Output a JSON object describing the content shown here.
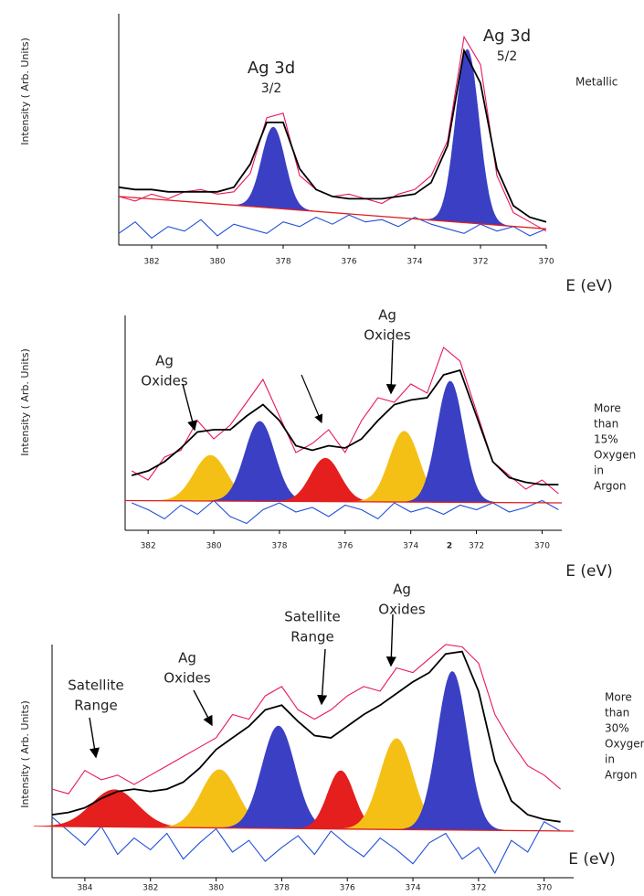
{
  "chart_data": [
    {
      "type": "line",
      "y_label": "Intensity ( Arb. Units)",
      "x_label": "E (eV)",
      "side_label": [
        "Metallic"
      ],
      "annotations": [
        {
          "lines": [
            "Ag 3d",
            "3/2"
          ]
        },
        {
          "lines": [
            "Ag 3d",
            "5/2"
          ]
        }
      ],
      "xlim": [
        383,
        370
      ],
      "xticks": [
        382,
        380,
        378,
        376,
        374,
        372,
        370
      ],
      "ylim": [
        0,
        100
      ],
      "x": [
        383,
        382.5,
        382,
        381.5,
        381,
        380.5,
        380,
        379.5,
        379,
        378.5,
        378,
        377.5,
        377,
        376.5,
        376,
        375.5,
        375,
        374.5,
        374,
        373.5,
        373,
        372.5,
        372,
        371.5,
        371,
        370.5,
        370
      ],
      "series": [
        {
          "color": "#1f4fd8",
          "values": [
            5,
            10,
            3,
            8,
            6,
            11,
            4,
            9,
            7,
            5,
            10,
            8,
            12,
            9,
            13,
            10,
            11,
            8,
            12,
            9,
            7,
            5,
            9,
            6,
            8,
            4,
            7
          ]
        },
        {
          "color": "#e8175d",
          "values": [
            21,
            19,
            22,
            20,
            23,
            24,
            22,
            23,
            31,
            55,
            57,
            30,
            24,
            21,
            22,
            20,
            18,
            22,
            24,
            30,
            45,
            90,
            78,
            30,
            14,
            10,
            6
          ]
        },
        {
          "color": "#000000",
          "values": [
            25,
            24,
            24,
            23,
            23,
            23,
            23,
            25,
            35,
            53,
            53,
            33,
            24,
            21,
            20,
            20,
            20,
            21,
            22,
            27,
            43,
            84,
            70,
            33,
            17,
            12,
            10
          ]
        }
      ],
      "background": {
        "color": "#e02020",
        "x": [
          383,
          370
        ],
        "values": [
          21,
          7
        ]
      },
      "peaks": [
        {
          "center": 378.3,
          "height": 35,
          "width": 0.35,
          "color": "#3a3fc4"
        },
        {
          "center": 372.4,
          "height": 75,
          "width": 0.35,
          "color": "#3a3fc4"
        }
      ]
    },
    {
      "type": "line",
      "y_label": "Intensity ( Arb. Units)",
      "x_label": "E (eV)",
      "side_label": [
        "More",
        "than",
        "15%",
        "Oxygen",
        "in",
        "Argon"
      ],
      "annotations": [
        {
          "lines": [
            "Ag",
            "Oxides"
          ]
        },
        {
          "lines": [
            "Ag",
            "Oxides"
          ]
        },
        {
          "lines": [
            "2"
          ]
        }
      ],
      "xlim": [
        382.7,
        369.4
      ],
      "xticks": [
        382,
        380,
        378,
        376,
        374,
        372,
        370
      ],
      "ylim": [
        0,
        100
      ],
      "x": [
        382.5,
        382,
        381.5,
        381,
        380.5,
        380,
        379.5,
        379,
        378.5,
        378,
        377.5,
        377,
        376.5,
        376,
        375.5,
        375,
        374.5,
        374,
        373.5,
        373,
        372.5,
        372,
        371.5,
        371,
        370.5,
        370,
        369.5
      ],
      "series": [
        {
          "color": "#1f4fd8",
          "values": [
            12,
            9,
            5,
            11,
            7,
            13,
            6,
            3,
            9,
            12,
            8,
            10,
            6,
            11,
            9,
            5,
            12,
            8,
            10,
            7,
            11,
            9,
            12,
            8,
            10,
            13,
            9
          ]
        },
        {
          "color": "#e8175d",
          "values": [
            26,
            22,
            32,
            35,
            48,
            40,
            46,
            56,
            66,
            50,
            34,
            38,
            44,
            34,
            48,
            58,
            56,
            64,
            60,
            80,
            74,
            52,
            30,
            24,
            18,
            22,
            16
          ]
        },
        {
          "color": "#000000",
          "values": [
            24,
            26,
            30,
            36,
            43,
            44,
            44,
            50,
            55,
            48,
            37,
            35,
            37,
            36,
            40,
            48,
            55,
            57,
            58,
            68,
            70,
            50,
            30,
            23,
            21,
            20,
            20
          ]
        }
      ],
      "background": {
        "color": "#e02020",
        "x": [
          382.7,
          369.4
        ],
        "values": [
          13,
          12
        ]
      },
      "peaks": [
        {
          "center": 380.1,
          "height": 20,
          "width": 0.5,
          "color": "#f5c015"
        },
        {
          "center": 378.6,
          "height": 35,
          "width": 0.45,
          "color": "#3a3fc4"
        },
        {
          "center": 376.6,
          "height": 19,
          "width": 0.45,
          "color": "#e51e1e"
        },
        {
          "center": 374.2,
          "height": 31,
          "width": 0.45,
          "color": "#f5c015"
        },
        {
          "center": 372.8,
          "height": 53,
          "width": 0.4,
          "color": "#3a3fc4"
        }
      ]
    },
    {
      "type": "line",
      "y_label": "Intensity ( Arb. Units)",
      "x_label": "E (eV)",
      "side_label": [
        "More",
        "than",
        "30%",
        "Oxygen",
        "in",
        "Argon"
      ],
      "annotations": [
        {
          "lines": [
            "Satellite",
            "Range"
          ]
        },
        {
          "lines": [
            "Ag",
            "Oxides"
          ]
        },
        {
          "lines": [
            "Satellite",
            "Range"
          ]
        },
        {
          "lines": [
            "Ag",
            "Oxides"
          ]
        }
      ],
      "xlim": [
        385,
        369.1
      ],
      "xticks": [
        384,
        382,
        380,
        378,
        376,
        374,
        372,
        370
      ],
      "ylim": [
        0,
        100
      ],
      "x": [
        385,
        384.5,
        384,
        383.5,
        383,
        382.5,
        382,
        381.5,
        381,
        380.5,
        380,
        379.5,
        379,
        378.5,
        378,
        377.5,
        377,
        376.5,
        376,
        375.5,
        375,
        374.5,
        374,
        373.5,
        373,
        372.5,
        372,
        371.5,
        371,
        370.5,
        370,
        369.5
      ],
      "series": [
        {
          "color": "#1f4fd8",
          "values": [
            26,
            20,
            14,
            22,
            10,
            17,
            12,
            19,
            8,
            15,
            21,
            11,
            16,
            7,
            13,
            18,
            10,
            20,
            14,
            9,
            17,
            12,
            6,
            15,
            19,
            8,
            13,
            2,
            16,
            11,
            24,
            20
          ]
        },
        {
          "color": "#e8175d",
          "values": [
            38,
            36,
            46,
            42,
            44,
            40,
            44,
            48,
            52,
            56,
            60,
            70,
            68,
            78,
            82,
            72,
            68,
            72,
            78,
            82,
            80,
            90,
            88,
            94,
            100,
            99,
            92,
            70,
            58,
            48,
            44,
            38
          ]
        },
        {
          "color": "#000000",
          "values": [
            27,
            28,
            30,
            34,
            37,
            38,
            37,
            38,
            41,
            47,
            55,
            60,
            65,
            72,
            74,
            67,
            61,
            60,
            65,
            70,
            74,
            79,
            84,
            88,
            96,
            97,
            80,
            50,
            33,
            27,
            25,
            24
          ]
        }
      ],
      "background": {
        "color": "#e02020",
        "x": [
          385,
          369.1
        ],
        "values": [
          22,
          20
        ]
      },
      "peaks": [
        {
          "center": 383.1,
          "height": 16,
          "width": 0.7,
          "color": "#e51e1e"
        },
        {
          "center": 379.9,
          "height": 25,
          "width": 0.55,
          "color": "#f5c015"
        },
        {
          "center": 378.1,
          "height": 44,
          "width": 0.5,
          "color": "#3a3fc4"
        },
        {
          "center": 376.2,
          "height": 25,
          "width": 0.4,
          "color": "#e51e1e"
        },
        {
          "center": 374.5,
          "height": 39,
          "width": 0.5,
          "color": "#f5c015"
        },
        {
          "center": 372.8,
          "height": 68,
          "width": 0.45,
          "color": "#3a3fc4"
        }
      ]
    }
  ]
}
